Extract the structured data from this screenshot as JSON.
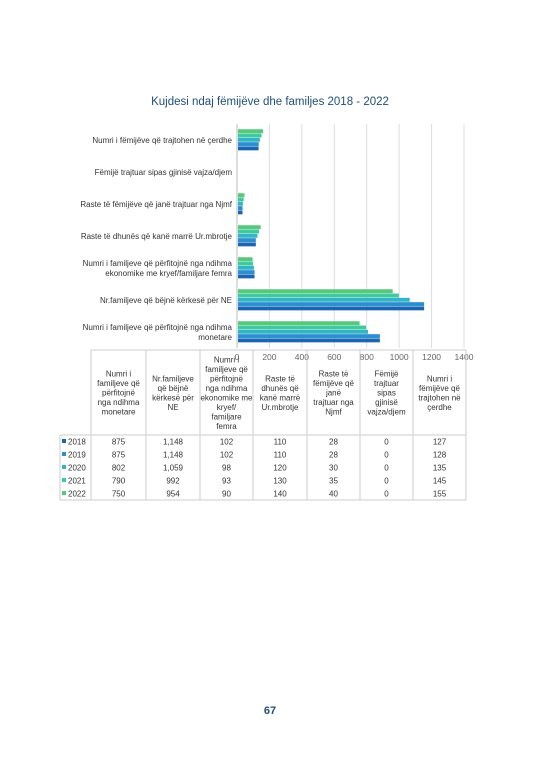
{
  "page": {
    "page_number": "67"
  },
  "chart_data": {
    "type": "bar",
    "orientation": "horizontal",
    "title": "Kujdesi ndaj fëmijëve dhe familjes 2018 - 2022",
    "categories": [
      "Numri i fëmijëve që trajtohen në çerdhe",
      "Fëmijë trajtuar sipas gjinisë vajza/djem",
      "Raste të fëmijëve që janë trajtuar nga Njmf",
      "Raste të dhunës që kanë marrë Ur.mbrotje",
      "Numri i familjeve që përfitojnë nga ndihma ekonomike me kryef/familjare femra",
      "Nr.familjeve që bëjnë kërkesë për NE",
      "Numri i familjeve që përfitojnë nga ndihma monetare"
    ],
    "series": [
      {
        "name": "2018",
        "color": "#1a66b0",
        "values": [
          127,
          0,
          28,
          110,
          102,
          1148,
          875
        ]
      },
      {
        "name": "2019",
        "color": "#2d8fd0",
        "values": [
          128,
          0,
          28,
          110,
          102,
          1148,
          875
        ]
      },
      {
        "name": "2020",
        "color": "#33b5c8",
        "values": [
          135,
          0,
          30,
          120,
          98,
          1059,
          802
        ]
      },
      {
        "name": "2021",
        "color": "#3fc9a0",
        "values": [
          145,
          0,
          35,
          130,
          93,
          992,
          790
        ]
      },
      {
        "name": "2022",
        "color": "#55c87a",
        "values": [
          155,
          0,
          40,
          140,
          90,
          954,
          750
        ]
      }
    ],
    "xlim": [
      0,
      1400
    ],
    "x_ticks": [
      "0",
      "200",
      "400",
      "600",
      "800",
      "1000",
      "1200",
      "1400"
    ],
    "grid": true,
    "legend": "data-table-below",
    "table": {
      "headers": [
        "Numri i familjeve që përfitojnë nga ndihma monetare",
        "Nr.familjeve që bëjnë kërkesë për NE",
        "Numri i familjeve që përfitojnë nga ndihma ekonomike me kryef/ familjare femra",
        "Raste të dhunës që kanë marrë Ur.mbrotje",
        "Raste të fëmijëve që janë trajtuar nga Njmf",
        "Fëmijë trajtuar sipas gjinisë vajza/djem",
        "Numri i fëmijëve që trajtohen në çerdhe"
      ],
      "rows": [
        {
          "year": "2018",
          "cells": [
            "875",
            "1,148",
            "102",
            "110",
            "28",
            "0",
            "127"
          ]
        },
        {
          "year": "2019",
          "cells": [
            "875",
            "1,148",
            "102",
            "110",
            "28",
            "0",
            "128"
          ]
        },
        {
          "year": "2020",
          "cells": [
            "802",
            "1,059",
            "98",
            "120",
            "30",
            "0",
            "135"
          ]
        },
        {
          "year": "2021",
          "cells": [
            "790",
            "992",
            "93",
            "130",
            "35",
            "0",
            "145"
          ]
        },
        {
          "year": "2022",
          "cells": [
            "750",
            "954",
            "90",
            "140",
            "40",
            "0",
            "155"
          ]
        }
      ]
    }
  }
}
